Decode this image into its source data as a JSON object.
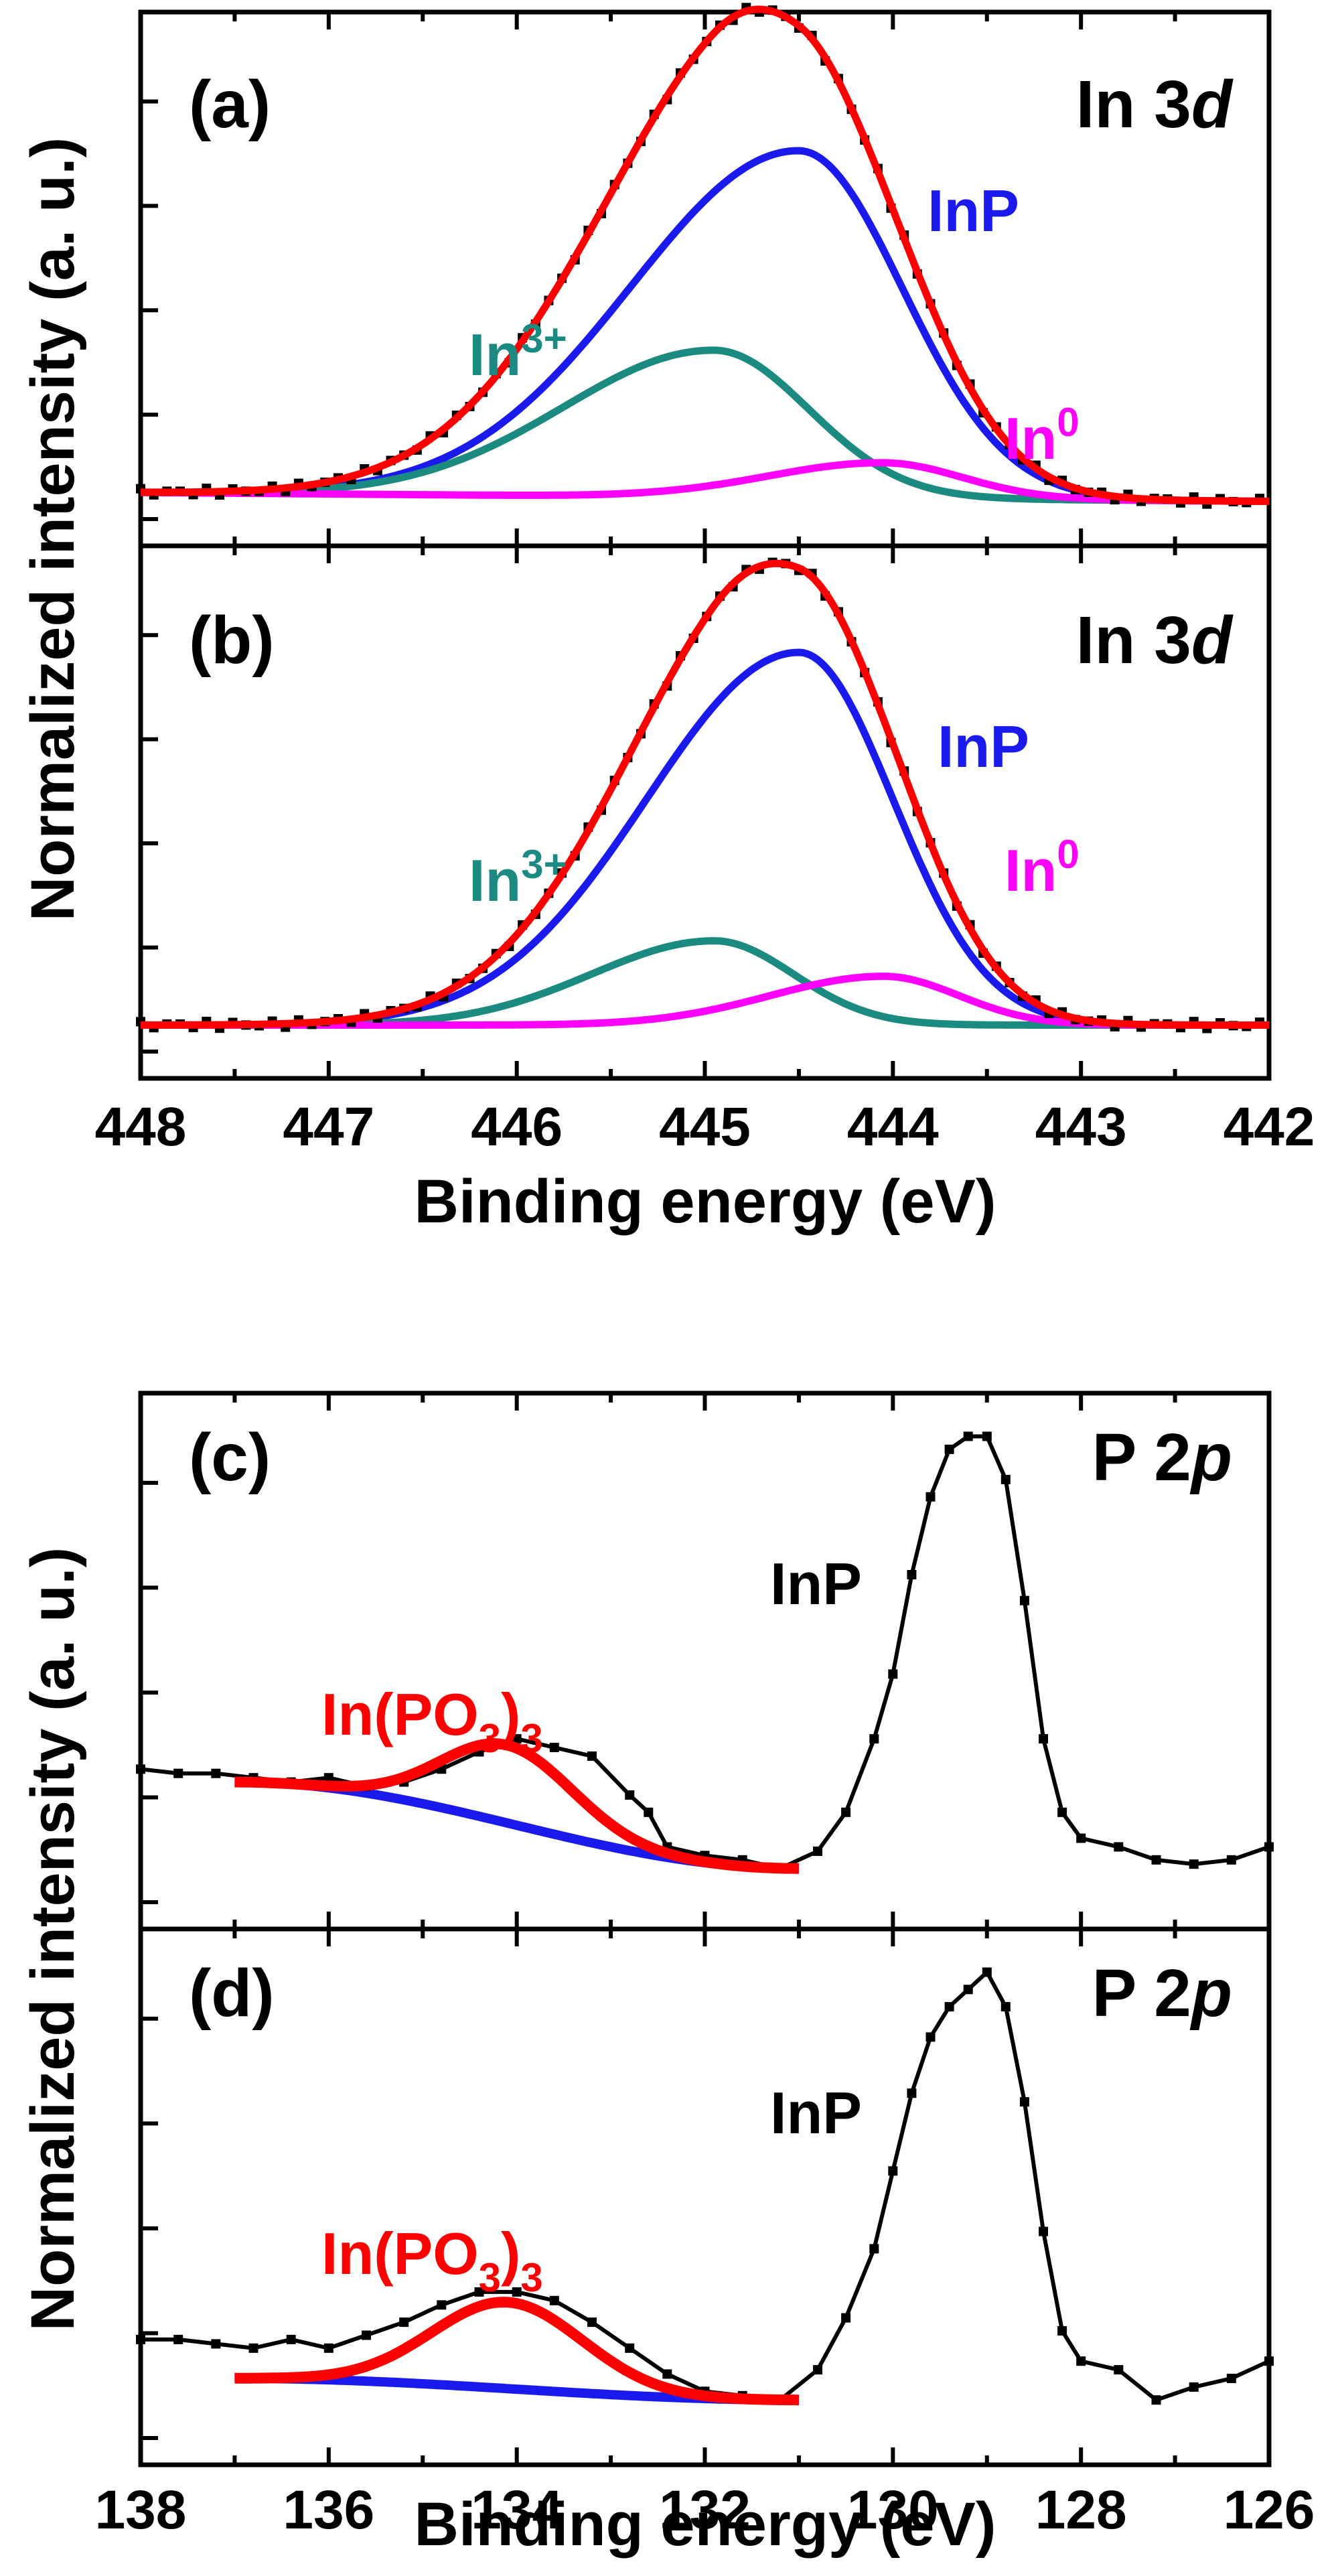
{
  "figure": {
    "panels_top": {
      "ylabel": "Normalized intensity (a. u.)",
      "xlabel": "Binding energy (eV)",
      "xlim": [
        448,
        442
      ],
      "xticks": [
        "448",
        "447",
        "446",
        "445",
        "444",
        "443",
        "442"
      ]
    },
    "panels_bottom": {
      "ylabel": "Normalized intensity (a. u.)",
      "xlabel": "Binding energy (eV)",
      "xlim": [
        138,
        126
      ],
      "xticks": [
        "138",
        "136",
        "134",
        "132",
        "130",
        "128",
        "126"
      ]
    }
  },
  "chart_data": [
    {
      "type": "line",
      "panel": "(a)",
      "title": "In 3d",
      "title_main": "In 3",
      "title_italic": "d",
      "xlabel": "Binding energy (eV)",
      "ylabel": "Normalized intensity (a. u.)",
      "xlim": [
        448,
        442
      ],
      "ylim": [
        -0.12,
        1.08
      ],
      "colors": {
        "data": "#000000",
        "envelope": "#ff0000",
        "InP": "#1a1aee",
        "In3+": "#1b8a80",
        "In0": "#ff00ff"
      },
      "labels": {
        "InP": "InP",
        "In3_base": "In",
        "In3_sup": "3+",
        "In0_base": "In",
        "In0_sup": "0"
      },
      "components": [
        {
          "name": "InP",
          "center": 444.5,
          "sigma": 0.55,
          "amp": 0.78,
          "asym_lo": 0.62
        },
        {
          "name": "In3+",
          "center": 444.95,
          "sigma": 0.5,
          "amp": 0.33,
          "asym_lo": 0.6
        },
        {
          "name": "In0",
          "center": 444.05,
          "sigma": 0.42,
          "amp": 0.08,
          "asym_lo": 0.45
        }
      ],
      "baseline": [
        0.0,
        -0.02
      ]
    },
    {
      "type": "line",
      "panel": "(b)",
      "title": "In 3d",
      "title_main": "In 3",
      "title_italic": "d",
      "xlabel": "Binding energy (eV)",
      "ylabel": "Normalized intensity (a. u.)",
      "xlim": [
        448,
        442
      ],
      "ylim": [
        -0.12,
        1.08
      ],
      "colors": {
        "data": "#000000",
        "envelope": "#ff0000",
        "InP": "#1a1aee",
        "In3+": "#1b8a80",
        "In0": "#ff00ff"
      },
      "labels": {
        "InP": "InP",
        "In3_base": "In",
        "In3_sup": "3+",
        "In0_base": "In",
        "In0_sup": "0"
      },
      "components": [
        {
          "name": "InP",
          "center": 444.5,
          "sigma": 0.5,
          "amp": 0.84,
          "asym_lo": 0.62
        },
        {
          "name": "In3+",
          "center": 444.95,
          "sigma": 0.42,
          "amp": 0.19,
          "asym_lo": 0.55
        },
        {
          "name": "In0",
          "center": 444.05,
          "sigma": 0.4,
          "amp": 0.11,
          "asym_lo": 0.5
        }
      ],
      "baseline": [
        0.0,
        0.0
      ]
    },
    {
      "type": "line",
      "panel": "(c)",
      "title": "P 2p",
      "title_main": "P 2",
      "title_italic": "p",
      "xlabel": "Binding energy (eV)",
      "ylabel": "Normalized intensity (a. u.)",
      "xlim": [
        138,
        126
      ],
      "ylim": [
        -0.14,
        1.1
      ],
      "colors": {
        "data": "#000000",
        "envelope": "#ff0000",
        "background": "#1a1aee"
      },
      "labels": {
        "InP": "InP",
        "InPO_a": "In(PO",
        "InPO_b": "3",
        "InPO_c": ")",
        "InPO_d": "3"
      },
      "data_points": [
        [
          138.0,
          0.23
        ],
        [
          137.6,
          0.22
        ],
        [
          137.2,
          0.22
        ],
        [
          136.8,
          0.21
        ],
        [
          136.4,
          0.2
        ],
        [
          136.0,
          0.21
        ],
        [
          135.6,
          0.19
        ],
        [
          135.2,
          0.2
        ],
        [
          134.8,
          0.23
        ],
        [
          134.4,
          0.27
        ],
        [
          134.0,
          0.3
        ],
        [
          133.6,
          0.28
        ],
        [
          133.2,
          0.26
        ],
        [
          132.8,
          0.17
        ],
        [
          132.6,
          0.13
        ],
        [
          132.4,
          0.05
        ],
        [
          132.0,
          0.03
        ],
        [
          131.6,
          0.02
        ],
        [
          131.2,
          0.0
        ],
        [
          130.8,
          0.04
        ],
        [
          130.5,
          0.13
        ],
        [
          130.2,
          0.3
        ],
        [
          130.0,
          0.45
        ],
        [
          129.8,
          0.68
        ],
        [
          129.6,
          0.86
        ],
        [
          129.4,
          0.97
        ],
        [
          129.2,
          1.0
        ],
        [
          129.0,
          1.0
        ],
        [
          128.8,
          0.9
        ],
        [
          128.6,
          0.62
        ],
        [
          128.4,
          0.3
        ],
        [
          128.2,
          0.13
        ],
        [
          128.0,
          0.07
        ],
        [
          127.6,
          0.05
        ],
        [
          127.2,
          0.02
        ],
        [
          126.8,
          0.01
        ],
        [
          126.4,
          0.02
        ],
        [
          126.0,
          0.05
        ]
      ],
      "envelope": {
        "x_range": [
          137.0,
          131.0
        ],
        "center": 134.1,
        "sigma": 0.7,
        "amp": 0.18
      },
      "background": {
        "x_range": [
          137.0,
          131.0
        ],
        "start": 0.2,
        "end": 0.0
      }
    },
    {
      "type": "line",
      "panel": "(d)",
      "title": "P 2p",
      "title_main": "P 2",
      "title_italic": "p",
      "xlabel": "Binding energy (eV)",
      "ylabel": "Normalized intensity (a. u.)",
      "xlim": [
        138,
        126
      ],
      "ylim": [
        -0.14,
        1.1
      ],
      "colors": {
        "data": "#000000",
        "envelope": "#ff0000",
        "background": "#1a1aee"
      },
      "labels": {
        "InP": "InP",
        "InPO_a": "In(PO",
        "InPO_b": "3",
        "InPO_c": ")",
        "InPO_d": "3"
      },
      "data_points": [
        [
          138.0,
          0.15
        ],
        [
          137.6,
          0.15
        ],
        [
          137.2,
          0.14
        ],
        [
          136.8,
          0.13
        ],
        [
          136.4,
          0.15
        ],
        [
          136.0,
          0.13
        ],
        [
          135.6,
          0.16
        ],
        [
          135.2,
          0.19
        ],
        [
          134.8,
          0.23
        ],
        [
          134.4,
          0.26
        ],
        [
          134.0,
          0.26
        ],
        [
          133.6,
          0.24
        ],
        [
          133.2,
          0.19
        ],
        [
          132.8,
          0.13
        ],
        [
          132.4,
          0.07
        ],
        [
          132.0,
          0.03
        ],
        [
          131.6,
          0.02
        ],
        [
          131.2,
          0.01
        ],
        [
          130.8,
          0.08
        ],
        [
          130.5,
          0.2
        ],
        [
          130.2,
          0.36
        ],
        [
          130.0,
          0.54
        ],
        [
          129.8,
          0.72
        ],
        [
          129.6,
          0.85
        ],
        [
          129.4,
          0.92
        ],
        [
          129.2,
          0.96
        ],
        [
          129.0,
          1.0
        ],
        [
          128.8,
          0.92
        ],
        [
          128.6,
          0.7
        ],
        [
          128.4,
          0.4
        ],
        [
          128.2,
          0.17
        ],
        [
          128.0,
          0.1
        ],
        [
          127.6,
          0.08
        ],
        [
          127.2,
          0.01
        ],
        [
          126.8,
          0.04
        ],
        [
          126.4,
          0.06
        ],
        [
          126.0,
          0.1
        ]
      ],
      "envelope": {
        "x_range": [
          137.0,
          131.0
        ],
        "center": 134.1,
        "sigma": 0.8,
        "amp": 0.2
      },
      "background": {
        "x_range": [
          137.0,
          131.0
        ],
        "start": 0.06,
        "end": 0.01
      }
    }
  ]
}
